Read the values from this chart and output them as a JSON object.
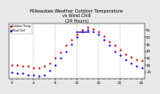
{
  "title": "Milwaukee Weather Outdoor Temperature\nvs Wind Chill\n(24 Hours)",
  "title_fontsize": 3.5,
  "bg_color": "#e8e8e8",
  "plot_bg_color": "#ffffff",
  "grid_color": "#888888",
  "hours": [
    0,
    1,
    2,
    3,
    4,
    5,
    6,
    7,
    8,
    9,
    10,
    11,
    12,
    13,
    14,
    15,
    16,
    17,
    18,
    19,
    20,
    21,
    22,
    23,
    24
  ],
  "temp": [
    30,
    30,
    29,
    29,
    28,
    28,
    29,
    31,
    35,
    39,
    44,
    48,
    52,
    55,
    57,
    56,
    54,
    51,
    47,
    44,
    41,
    38,
    36,
    34,
    33
  ],
  "wind_chill": [
    25,
    24,
    24,
    23,
    23,
    22,
    23,
    26,
    30,
    35,
    40,
    45,
    50,
    54,
    55,
    54,
    52,
    48,
    44,
    40,
    37,
    34,
    31,
    29,
    28
  ],
  "temp_color": "#cc0000",
  "wind_chill_color": "#0000cc",
  "marker_size": 1.2,
  "ylim": [
    20,
    60
  ],
  "yticks": [
    25,
    30,
    35,
    40,
    45,
    50,
    55
  ],
  "ytick_labels": [
    "25",
    "30",
    "35",
    "40",
    "45",
    "50",
    "55"
  ],
  "xlim": [
    -0.5,
    24.5
  ],
  "xtick_major": [
    0,
    4,
    8,
    12,
    16,
    20,
    24
  ],
  "xtick_major_labels": [
    "0",
    "4",
    "8",
    "12",
    "16",
    "20",
    "24"
  ],
  "xtick_minor": [
    0,
    1,
    2,
    3,
    4,
    5,
    6,
    7,
    8,
    9,
    10,
    11,
    12,
    13,
    14,
    15,
    16,
    17,
    18,
    19,
    20,
    21,
    22,
    23,
    24
  ],
  "tick_fontsize": 2.8,
  "vgrid_x": [
    4,
    8,
    12,
    16,
    20
  ],
  "legend_labels": [
    "Outdoor Temp",
    "Wind Chill"
  ],
  "legend_colors": [
    "#cc0000",
    "#0000cc"
  ],
  "blue_hline_x": [
    11.8,
    14.2
  ],
  "blue_hline_y": [
    54,
    54
  ]
}
